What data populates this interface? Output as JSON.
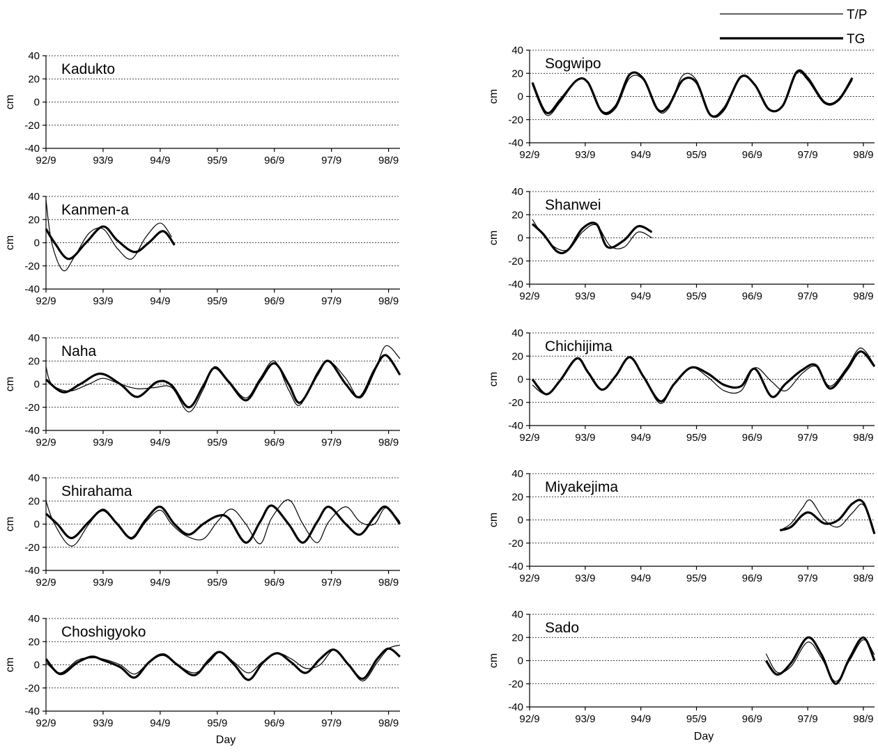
{
  "legend": {
    "tp_label": "T/P",
    "tg_label": "TG"
  },
  "left_xlabel": "Day",
  "right_xlabel": "Day",
  "chart_data": [
    {
      "type": "line",
      "column": "left",
      "title": "Kadukto",
      "ylabel": "cm",
      "ylim": [
        -40,
        40
      ],
      "yticks": [
        "40",
        "20",
        "0",
        "-20",
        "-40"
      ],
      "xticks": [
        "92/9",
        "93/9",
        "94/9",
        "95/9",
        "96/9",
        "97/9",
        "98/9"
      ],
      "xlim": [
        0,
        6.2
      ],
      "grid": "dotted-horizontal",
      "series": []
    },
    {
      "type": "line",
      "column": "left",
      "title": "Kanmen-a",
      "ylabel": "cm",
      "ylim": [
        -40,
        40
      ],
      "yticks": [
        "40",
        "20",
        "0",
        "-20",
        "-40"
      ],
      "xticks": [
        "92/9",
        "93/9",
        "94/9",
        "95/9",
        "96/9",
        "97/9",
        "98/9"
      ],
      "xlim": [
        0,
        6.2
      ],
      "grid": "dotted-horizontal",
      "series": [
        {
          "name": "T/P",
          "x": [
            -0.05,
            0.1,
            0.3,
            0.5,
            0.75,
            1.0,
            1.25,
            1.5,
            1.75,
            2.0,
            2.2
          ],
          "y": [
            37,
            0,
            -24,
            -12,
            8,
            12,
            -5,
            -14,
            5,
            17,
            5
          ]
        },
        {
          "name": "TG",
          "x": [
            0,
            0.15,
            0.4,
            0.7,
            1.0,
            1.25,
            1.55,
            1.8,
            2.05,
            2.25
          ],
          "y": [
            12,
            0,
            -14,
            0,
            14,
            2,
            -8,
            0,
            10,
            -2
          ]
        }
      ]
    },
    {
      "type": "line",
      "column": "left",
      "title": "Naha",
      "ylabel": "cm",
      "ylim": [
        -40,
        40
      ],
      "yticks": [
        "40",
        "20",
        "0",
        "-20",
        "-40"
      ],
      "xticks": [
        "92/9",
        "93/9",
        "94/9",
        "95/9",
        "96/9",
        "97/9",
        "98/9"
      ],
      "xlim": [
        0,
        6.2
      ],
      "grid": "dotted-horizontal",
      "series": [
        {
          "name": "T/P",
          "x": [
            0,
            0.1,
            0.4,
            0.75,
            1.0,
            1.3,
            1.6,
            1.9,
            2.2,
            2.5,
            2.75,
            2.95,
            3.2,
            3.5,
            3.75,
            4.0,
            4.25,
            4.45,
            4.75,
            4.95,
            5.25,
            5.5,
            5.75,
            5.95,
            6.2
          ],
          "y": [
            15,
            0,
            -6,
            0,
            5,
            0,
            -4,
            -3,
            -3,
            -24,
            -5,
            15,
            3,
            -12,
            5,
            20,
            -5,
            -18,
            10,
            20,
            5,
            -12,
            10,
            33,
            22
          ]
        },
        {
          "name": "TG",
          "x": [
            0,
            0.3,
            0.6,
            0.95,
            1.3,
            1.6,
            1.95,
            2.2,
            2.5,
            2.75,
            2.95,
            3.2,
            3.5,
            3.75,
            4.0,
            4.25,
            4.45,
            4.75,
            4.95,
            5.25,
            5.5,
            5.75,
            5.95,
            6.2
          ],
          "y": [
            4,
            -7,
            0,
            9,
            0,
            -11,
            2,
            -1,
            -20,
            -2,
            14,
            2,
            -14,
            3,
            18,
            0,
            -16,
            8,
            20,
            0,
            -11,
            12,
            25,
            8
          ]
        }
      ]
    },
    {
      "type": "line",
      "column": "left",
      "title": "Shirahama",
      "ylabel": "cm",
      "ylim": [
        -40,
        40
      ],
      "yticks": [
        "40",
        "20",
        "0",
        "-20",
        "-40"
      ],
      "xticks": [
        "92/9",
        "93/9",
        "94/9",
        "95/9",
        "96/9",
        "97/9",
        "98/9"
      ],
      "xlim": [
        0,
        6.2
      ],
      "grid": "dotted-horizontal",
      "series": [
        {
          "name": "T/P",
          "x": [
            0,
            0.15,
            0.45,
            0.75,
            1.0,
            1.25,
            1.5,
            1.75,
            2.0,
            2.2,
            2.45,
            2.75,
            3.0,
            3.25,
            3.5,
            3.75,
            3.95,
            4.25,
            4.5,
            4.75,
            4.95,
            5.25,
            5.5,
            5.75,
            5.95,
            6.2
          ],
          "y": [
            20,
            0,
            -19,
            0,
            13,
            0,
            -13,
            2,
            12,
            0,
            -10,
            -13,
            2,
            13,
            0,
            -17,
            5,
            21,
            0,
            -16,
            2,
            15,
            2,
            0,
            14,
            2
          ]
        },
        {
          "name": "TG",
          "x": [
            0,
            0.2,
            0.45,
            0.75,
            1.0,
            1.25,
            1.5,
            1.75,
            2.0,
            2.25,
            2.5,
            2.75,
            3.0,
            3.2,
            3.5,
            3.75,
            3.95,
            4.25,
            4.5,
            4.75,
            4.95,
            5.25,
            5.5,
            5.75,
            5.95,
            6.2
          ],
          "y": [
            9,
            0,
            -12,
            2,
            12,
            0,
            -12,
            4,
            15,
            0,
            -9,
            0,
            7,
            5,
            -16,
            2,
            16,
            0,
            -16,
            2,
            15,
            0,
            -9,
            6,
            15,
            0
          ]
        }
      ]
    },
    {
      "type": "line",
      "column": "left",
      "title": "Choshigyoko",
      "ylabel": "cm",
      "ylim": [
        -40,
        40
      ],
      "yticks": [
        "40",
        "20",
        "0",
        "-20",
        "-40"
      ],
      "xticks": [
        "92/9",
        "93/9",
        "94/9",
        "95/9",
        "96/9",
        "97/9",
        "98/9"
      ],
      "xlim": [
        0,
        6.2
      ],
      "grid": "dotted-horizontal",
      "series": [
        {
          "name": "T/P",
          "x": [
            0,
            0.25,
            0.55,
            0.8,
            1.0,
            1.3,
            1.55,
            1.8,
            2.05,
            2.3,
            2.6,
            2.85,
            3.05,
            3.3,
            3.55,
            3.8,
            4.05,
            4.3,
            4.55,
            4.8,
            5.05,
            5.3,
            5.55,
            5.8,
            6.0,
            6.2
          ],
          "y": [
            2,
            -7,
            4,
            6,
            5,
            0,
            -8,
            2,
            8,
            0,
            -7,
            2,
            11,
            2,
            -7,
            3,
            10,
            5,
            -3,
            0,
            13,
            0,
            -14,
            2,
            14,
            17
          ]
        },
        {
          "name": "TG",
          "x": [
            0,
            0.25,
            0.55,
            0.8,
            1.0,
            1.3,
            1.55,
            1.8,
            2.05,
            2.3,
            2.6,
            2.85,
            3.05,
            3.3,
            3.55,
            3.8,
            4.05,
            4.3,
            4.55,
            4.8,
            5.05,
            5.3,
            5.55,
            5.8,
            6.0,
            6.2
          ],
          "y": [
            5,
            -8,
            2,
            7,
            4,
            -2,
            -11,
            2,
            9,
            0,
            -9,
            4,
            11,
            0,
            -13,
            2,
            10,
            2,
            -7,
            5,
            13,
            0,
            -12,
            5,
            14,
            7
          ]
        }
      ]
    },
    {
      "type": "line",
      "column": "right",
      "title": "Sogwipo",
      "ylabel": "cm",
      "ylim": [
        -40,
        40
      ],
      "yticks": [
        "40",
        "20",
        "0",
        "-20",
        "-40"
      ],
      "xticks": [
        "92/9",
        "93/9",
        "94/9",
        "95/9",
        "96/9",
        "97/9",
        "98/9"
      ],
      "xlim": [
        0,
        6.2
      ],
      "grid": "dotted-horizontal",
      "series": [
        {
          "name": "T/P",
          "x": [
            0.05,
            0.3,
            0.55,
            0.85,
            1.05,
            1.3,
            1.55,
            1.8,
            2.05,
            2.3,
            2.5,
            2.75,
            3.0,
            3.25,
            3.5,
            3.8,
            4.05,
            4.3,
            4.55,
            4.8,
            5.0,
            5.3,
            5.55,
            5.8
          ],
          "y": [
            10,
            -16,
            -5,
            14,
            12,
            -14,
            -10,
            16,
            14,
            -12,
            -10,
            18,
            14,
            -16,
            -12,
            17,
            10,
            -11,
            -8,
            20,
            14,
            -6,
            -4,
            14
          ]
        },
        {
          "name": "TG",
          "x": [
            0.05,
            0.3,
            0.55,
            0.85,
            1.05,
            1.3,
            1.55,
            1.8,
            2.05,
            2.3,
            2.5,
            2.75,
            3.0,
            3.25,
            3.5,
            3.8,
            4.05,
            4.3,
            4.55,
            4.8,
            5.0,
            5.3,
            5.55,
            5.8
          ],
          "y": [
            12,
            -14,
            -3,
            14,
            12,
            -13,
            -8,
            19,
            15,
            -11,
            -8,
            14,
            12,
            -16,
            -10,
            17,
            10,
            -11,
            -8,
            21,
            16,
            -5,
            -3,
            16
          ]
        }
      ]
    },
    {
      "type": "line",
      "column": "right",
      "title": "Shanwei",
      "ylabel": "cm",
      "ylim": [
        -40,
        40
      ],
      "yticks": [
        "40",
        "20",
        "0",
        "-20",
        "-40"
      ],
      "xticks": [
        "92/9",
        "93/9",
        "94/9",
        "95/9",
        "96/9",
        "97/9",
        "98/9"
      ],
      "xlim": [
        0,
        6.2
      ],
      "grid": "dotted-horizontal",
      "series": [
        {
          "name": "T/P",
          "x": [
            0.05,
            0.2,
            0.45,
            0.7,
            0.95,
            1.2,
            1.45,
            1.7,
            1.95,
            2.2
          ],
          "y": [
            16,
            5,
            -8,
            -10,
            5,
            11,
            -7,
            -8,
            5,
            0
          ]
        },
        {
          "name": "TG",
          "x": [
            0.05,
            0.25,
            0.5,
            0.7,
            0.95,
            1.2,
            1.4,
            1.7,
            1.95,
            2.2
          ],
          "y": [
            12,
            3,
            -12,
            -10,
            8,
            12,
            -8,
            -2,
            10,
            5
          ]
        }
      ]
    },
    {
      "type": "line",
      "column": "right",
      "title": "Chichijima",
      "ylabel": "cm",
      "ylim": [
        -40,
        40
      ],
      "yticks": [
        "40",
        "20",
        "0",
        "-20",
        "-40"
      ],
      "xticks": [
        "92/9",
        "93/9",
        "94/9",
        "95/9",
        "96/9",
        "97/9",
        "98/9"
      ],
      "xlim": [
        0,
        6.2
      ],
      "grid": "dotted-horizontal",
      "series": [
        {
          "name": "T/P",
          "x": [
            0.05,
            0.3,
            0.55,
            0.85,
            1.05,
            1.3,
            1.55,
            1.8,
            2.05,
            2.35,
            2.6,
            2.9,
            3.2,
            3.5,
            3.8,
            4.05,
            4.35,
            4.6,
            4.9,
            5.15,
            5.4,
            5.7,
            5.95,
            6.2
          ],
          "y": [
            -5,
            -13,
            -1,
            18,
            6,
            -9,
            3,
            19,
            2,
            -21,
            -4,
            10,
            2,
            -10,
            -10,
            10,
            -2,
            -10,
            5,
            11,
            -6,
            10,
            27,
            12
          ]
        },
        {
          "name": "TG",
          "x": [
            0.05,
            0.3,
            0.55,
            0.85,
            1.05,
            1.3,
            1.55,
            1.8,
            2.05,
            2.35,
            2.6,
            2.9,
            3.2,
            3.5,
            3.8,
            4.05,
            4.35,
            4.6,
            4.9,
            5.15,
            5.4,
            5.7,
            5.95,
            6.2
          ],
          "y": [
            0,
            -13,
            -1,
            18,
            6,
            -9,
            3,
            19,
            2,
            -19,
            -4,
            10,
            5,
            -5,
            -6,
            9,
            -15,
            -4,
            8,
            12,
            -8,
            8,
            24,
            11
          ]
        }
      ]
    },
    {
      "type": "line",
      "column": "right",
      "title": "Miyakejima",
      "ylabel": "cm",
      "ylim": [
        -40,
        40
      ],
      "yticks": [
        "40",
        "20",
        "0",
        "-20",
        "-40"
      ],
      "xticks": [
        "92/9",
        "93/9",
        "94/9",
        "95/9",
        "96/9",
        "97/9",
        "98/9"
      ],
      "xlim": [
        0,
        6.2
      ],
      "grid": "dotted-horizontal",
      "series": [
        {
          "name": "T/P",
          "x": [
            4.5,
            4.7,
            4.9,
            5.05,
            5.3,
            5.55,
            5.8,
            6.0,
            6.2
          ],
          "y": [
            -9,
            -3,
            10,
            17,
            0,
            -6,
            6,
            13,
            -12
          ]
        },
        {
          "name": "TG",
          "x": [
            4.5,
            4.7,
            4.9,
            5.05,
            5.3,
            5.55,
            5.8,
            6.0,
            6.2
          ],
          "y": [
            -9,
            -6,
            4,
            6,
            -3,
            0,
            14,
            15,
            -12
          ]
        }
      ]
    },
    {
      "type": "line",
      "column": "right",
      "title": "Sado",
      "ylabel": "cm",
      "ylim": [
        -40,
        40
      ],
      "yticks": [
        "40",
        "20",
        "0",
        "-20",
        "-40"
      ],
      "xticks": [
        "92/9",
        "93/9",
        "94/9",
        "95/9",
        "96/9",
        "97/9",
        "98/9"
      ],
      "xlim": [
        0,
        6.2
      ],
      "grid": "dotted-horizontal",
      "series": [
        {
          "name": "T/P",
          "x": [
            4.25,
            4.45,
            4.7,
            5.0,
            5.25,
            5.5,
            5.75,
            6.0,
            6.2
          ],
          "y": [
            6,
            -10,
            -5,
            16,
            2,
            -18,
            0,
            18,
            5
          ]
        },
        {
          "name": "TG",
          "x": [
            4.25,
            4.45,
            4.7,
            5.0,
            5.25,
            5.5,
            5.75,
            6.0,
            6.2
          ],
          "y": [
            0,
            -12,
            -2,
            20,
            5,
            -20,
            2,
            20,
            0
          ]
        }
      ]
    }
  ]
}
